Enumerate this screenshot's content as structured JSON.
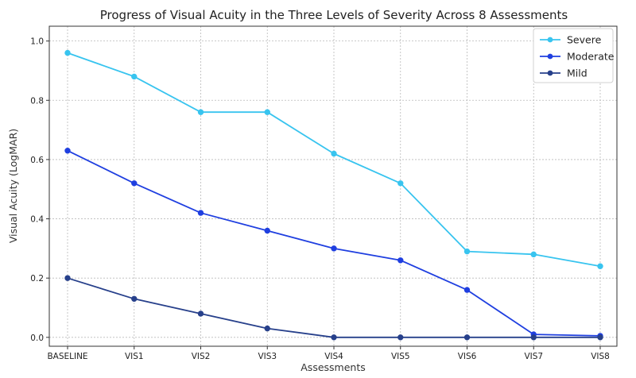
{
  "chart_data": {
    "type": "line",
    "title": "Progress of Visual Acuity in the Three Levels of Severity Across 8 Assessments",
    "xlabel": "Assessments",
    "ylabel": "Visual Acuity (LogMAR)",
    "categories": [
      "BASELINE",
      "VIS1",
      "VIS2",
      "VIS3",
      "VIS4",
      "VIS5",
      "VIS6",
      "VIS7",
      "VIS8"
    ],
    "ylim": [
      -0.03,
      1.05
    ],
    "yticks": [
      "0.0",
      "0.2",
      "0.4",
      "0.6",
      "0.8",
      "1.0"
    ],
    "grid": true,
    "legend_position": "top-right",
    "series": [
      {
        "name": "Severe",
        "color": "#38c4ef",
        "values": [
          0.96,
          0.88,
          0.76,
          0.76,
          0.62,
          0.52,
          0.29,
          0.28,
          0.24
        ]
      },
      {
        "name": "Moderate",
        "color": "#1f3fe0",
        "values": [
          0.63,
          0.52,
          0.42,
          0.36,
          0.3,
          0.26,
          0.16,
          0.01,
          0.005
        ]
      },
      {
        "name": "Mild",
        "color": "#27408b",
        "values": [
          0.2,
          0.13,
          0.08,
          0.03,
          0.0,
          0.0,
          0.0,
          0.0,
          0.0
        ]
      }
    ]
  }
}
